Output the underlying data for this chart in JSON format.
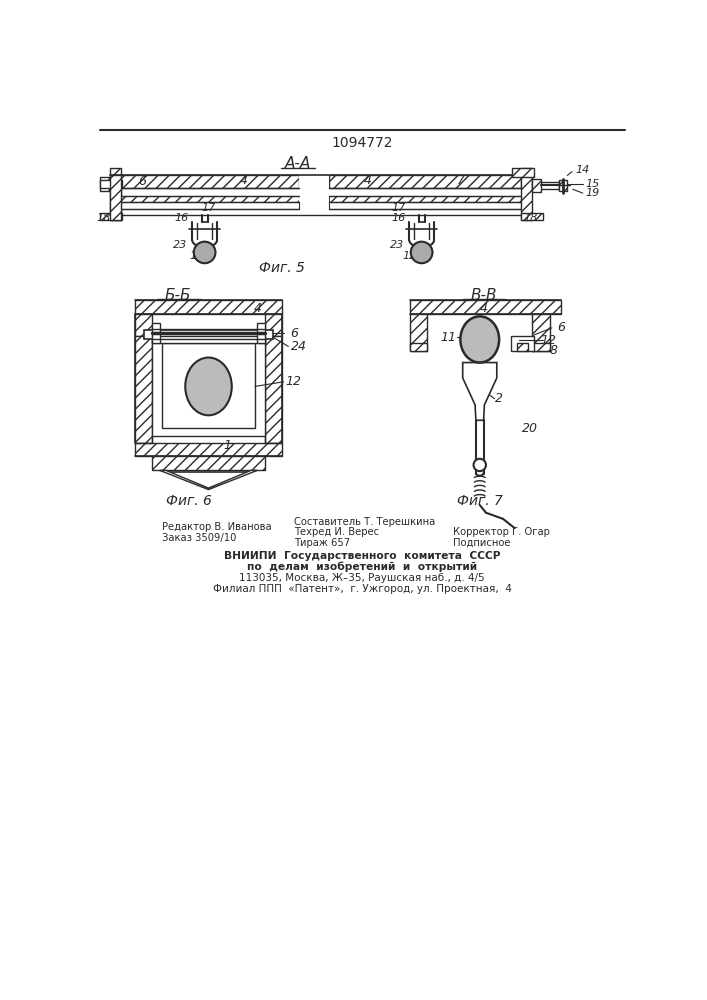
{
  "patent_number": "1094772",
  "bg_color": "#ffffff",
  "line_color": "#2a2a2a",
  "fig5_title": "А-А",
  "fig6_title": "Б-Б",
  "fig7_title": "В-В",
  "fig5_caption": "Фиг. 5",
  "fig6_caption": "Фиг. 6",
  "fig7_caption": "Фиг. 7",
  "footer_left_line1": "Редактор В. Иванова",
  "footer_left_line2": "Заказ 3509/10",
  "footer_center_line1": "Составитель Т. Терешкина",
  "footer_center_line2": "Техред И. Верес",
  "footer_center_line3": "Тираж 657",
  "footer_right_line2": "Корректор Г. Огар",
  "footer_right_line3": "Подписное",
  "footer_vniip1": "ВНИИПИ  Государственного  комитета  СССР",
  "footer_vniip2": "по  делам  изобретений  и  открытий",
  "footer_vniip3": "113035, Москва, Ж–35, Раушская наб., д. 4/5",
  "footer_vniip4": "Филиал ППП  «Патент»,  г. Ужгород, ул. Проектная,  4"
}
